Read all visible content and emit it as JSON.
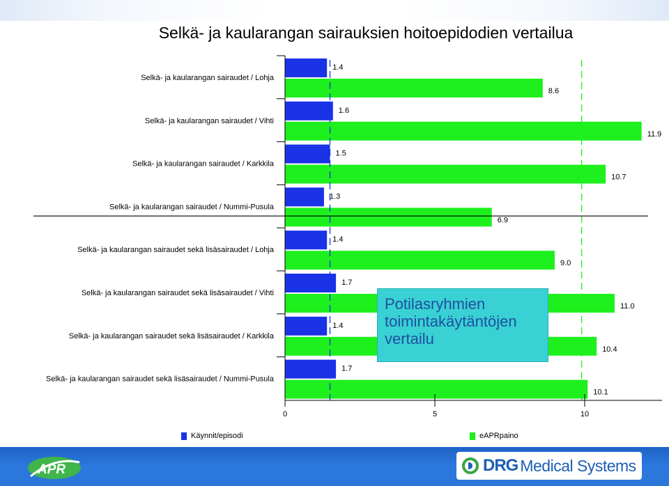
{
  "chart_data": {
    "type": "bar",
    "orientation": "horizontal",
    "title": "Selkä- ja kaularangan sairauksien hoitoepidodien vertailua",
    "categories": [
      "Selkä- ja kaularangan sairaudet / Lohja",
      "Selkä- ja kaularangan sairaudet / Vihti",
      "Selkä- ja kaularangan sairaudet / Karkkila",
      "Selkä- ja kaularangan sairaudet / Nummi-Pusula",
      "Selkä- ja kaularangan sairaudet sekä lisäsairaudet / Lohja",
      "Selkä- ja kaularangan sairaudet sekä lisäsairaudet / Vihti",
      "Selkä- ja kaularangan sairaudet sekä lisäsairaudet / Karkkila",
      "Selkä- ja kaularangan sairaudet sekä lisäsairaudet / Nummi-Pusula"
    ],
    "series": [
      {
        "name": "Käynnit/episodi",
        "color": "#1a33e6",
        "values": [
          1.4,
          1.6,
          1.5,
          1.3,
          1.4,
          1.7,
          1.4,
          1.7
        ],
        "labels": [
          "1.4",
          "1.6",
          "1.5",
          "1.3",
          "1.4",
          "1.7",
          "1.4",
          "1.7"
        ]
      },
      {
        "name": "eAPRpaino",
        "color": "#1ef01e",
        "values": [
          8.6,
          11.9,
          10.7,
          6.9,
          9.0,
          11.0,
          10.4,
          10.1
        ],
        "labels": [
          "8.6",
          "11.9",
          "10.7",
          "6.9",
          "9.0",
          "11.0",
          "10.4",
          "10.1"
        ]
      }
    ],
    "xlim": [
      0,
      12.5
    ],
    "xticks": [
      0,
      5,
      10
    ],
    "xtick_labels": [
      "0",
      "5",
      "10"
    ],
    "reference_lines": [
      {
        "value": 1.5,
        "color": "#1a33e6",
        "style": "dashed"
      },
      {
        "value": 9.9,
        "color": "#1ef01e",
        "style": "dashed"
      }
    ],
    "group_separator_after_index": 3,
    "legend_position": "bottom",
    "grid": false
  },
  "overlay_note": [
    "Potilasryhmien",
    "toimintakäytäntöjen",
    "vertailu"
  ],
  "footer": {
    "left_logo": "APR",
    "right_logo_brand": "DRG",
    "right_logo_text": "Medical Systems"
  }
}
